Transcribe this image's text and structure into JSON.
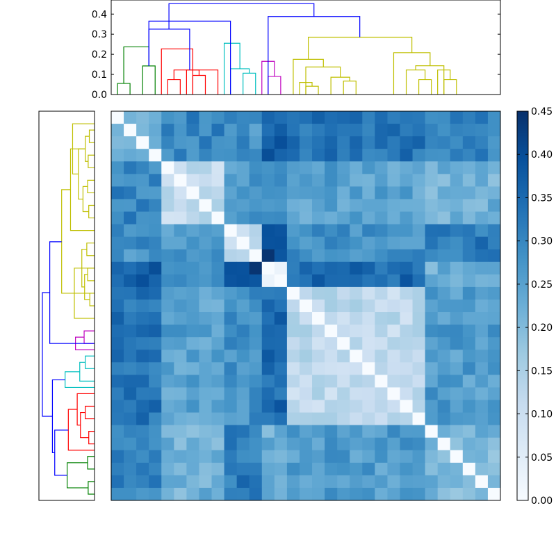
{
  "chart_data": [
    {
      "type": "heatmap",
      "title": "",
      "xlabel": "",
      "ylabel": "",
      "grid": false,
      "colormap": "Blues",
      "size": 31,
      "value_range": [
        0,
        0.45
      ],
      "colorbar": {
        "ticks": [
          0.0,
          0.05,
          0.1,
          0.15,
          0.2,
          0.25,
          0.3,
          0.35,
          0.4,
          0.45
        ],
        "tick_labels": [
          "0.00",
          "0.05",
          "0.10",
          "0.15",
          "0.20",
          "0.25",
          "0.30",
          "0.35",
          "0.40",
          "0.45"
        ]
      },
      "clusters": [
        {
          "color": "#008000",
          "count": 4
        },
        {
          "color": "#ff0000",
          "count": 5
        },
        {
          "color": "#00bfbf",
          "count": 3
        },
        {
          "color": "#bf00bf",
          "count": 2
        },
        {
          "color": "#bfbf00",
          "count": 11
        },
        {
          "color": "#bfbf00",
          "count": 6
        }
      ],
      "block_distances": [
        [
          0.24,
          0.3,
          0.28,
          0.36,
          0.33,
          0.3
        ],
        [
          0.3,
          0.12,
          0.26,
          0.3,
          0.25,
          0.22
        ],
        [
          0.28,
          0.26,
          0.13,
          0.42,
          0.28,
          0.32
        ],
        [
          0.36,
          0.3,
          0.42,
          0.05,
          0.35,
          0.22
        ],
        [
          0.33,
          0.25,
          0.28,
          0.35,
          0.12,
          0.26
        ],
        [
          0.3,
          0.22,
          0.32,
          0.22,
          0.26,
          0.21
        ]
      ]
    },
    {
      "type": "dendrogram",
      "orientation": "top",
      "xlabel": "",
      "ylabel": "",
      "ylim": [
        0,
        0.47
      ],
      "yticks": [
        0.0,
        0.1,
        0.2,
        0.3,
        0.4
      ],
      "ytick_labels": [
        "0.0",
        "0.1",
        "0.2",
        "0.3",
        "0.4"
      ],
      "link_color_default": "#0000ff",
      "links": [
        {
          "left": 0.5,
          "right": 1.5,
          "height": 0.055,
          "color": "#008000"
        },
        {
          "left": 1.0,
          "right": 3.0,
          "height": 0.237,
          "color": "#008000"
        },
        {
          "left": 2.5,
          "right": 3.5,
          "height": 0.142,
          "color": "#008000"
        },
        {
          "left": 4.5,
          "right": 5.5,
          "height": 0.074,
          "color": "#ff0000"
        },
        {
          "left": 6.5,
          "right": 7.5,
          "height": 0.095,
          "color": "#ff0000"
        },
        {
          "left": 5.0,
          "right": 7.0,
          "height": 0.122,
          "color": "#ff0000"
        },
        {
          "left": 8.5,
          "right": 6.0,
          "height": 0.122,
          "color": "#ff0000"
        },
        {
          "left": 4.0,
          "right": 6.5,
          "height": 0.227,
          "color": "#ff0000"
        },
        {
          "left": 10.5,
          "right": 11.5,
          "height": 0.106,
          "color": "#00bfbf"
        },
        {
          "left": 9.5,
          "right": 11.0,
          "height": 0.128,
          "color": "#00bfbf"
        },
        {
          "left": 9.0,
          "right": 10.25,
          "height": 0.255,
          "color": "#00bfbf"
        },
        {
          "left": 12.5,
          "right": 13.5,
          "height": 0.09,
          "color": "#bf00bf"
        },
        {
          "left": 12.0,
          "right": 13.0,
          "height": 0.165,
          "color": "#bf00bf"
        },
        {
          "left": 15.5,
          "right": 16.5,
          "height": 0.041,
          "color": "#bfbf00"
        },
        {
          "left": 15.0,
          "right": 16.0,
          "height": 0.06,
          "color": "#bfbf00"
        },
        {
          "left": 18.5,
          "right": 19.5,
          "height": 0.067,
          "color": "#bfbf00"
        },
        {
          "left": 17.5,
          "right": 19.0,
          "height": 0.086,
          "color": "#bfbf00"
        },
        {
          "left": 15.5,
          "right": 18.25,
          "height": 0.137,
          "color": "#bfbf00"
        },
        {
          "left": 14.5,
          "right": 16.9,
          "height": 0.175,
          "color": "#bfbf00"
        },
        {
          "left": 24.5,
          "right": 25.5,
          "height": 0.074,
          "color": "#bfbf00"
        },
        {
          "left": 23.5,
          "right": 25.0,
          "height": 0.122,
          "color": "#bfbf00"
        },
        {
          "left": 26.5,
          "right": 27.5,
          "height": 0.074,
          "color": "#bfbf00"
        },
        {
          "left": 26.0,
          "right": 27.0,
          "height": 0.122,
          "color": "#bfbf00"
        },
        {
          "left": 24.25,
          "right": 26.5,
          "height": 0.143,
          "color": "#bfbf00"
        },
        {
          "left": 22.5,
          "right": 25.4,
          "height": 0.208,
          "color": "#bfbf00"
        },
        {
          "left": 15.7,
          "right": 23.95,
          "height": 0.285,
          "color": "#bfbf00"
        },
        {
          "left": 3.0,
          "right": 9.5,
          "height": 0.365,
          "color": "#0000ff"
        },
        {
          "left": 3.0,
          "right": 6.25,
          "height": 0.325,
          "color": "#0000ff"
        },
        {
          "left": 12.5,
          "right": 19.8,
          "height": 0.388,
          "color": "#0000ff"
        },
        {
          "left": 4.6,
          "right": 16.15,
          "height": 0.452,
          "color": "#0000ff"
        }
      ]
    },
    {
      "type": "dendrogram",
      "orientation": "left",
      "xlabel": "",
      "ylabel": "",
      "link_color_default": "#0000ff",
      "links": [
        {
          "left": 0.5,
          "right": 1.5,
          "height": 0.055,
          "color": "#008000"
        },
        {
          "left": 2.5,
          "right": 3.5,
          "height": 0.06,
          "color": "#008000"
        },
        {
          "left": 1.0,
          "right": 3.0,
          "height": 0.237,
          "color": "#008000"
        },
        {
          "left": 4.5,
          "right": 5.5,
          "height": 0.05,
          "color": "#ff0000"
        },
        {
          "left": 6.5,
          "right": 7.5,
          "height": 0.08,
          "color": "#ff0000"
        },
        {
          "left": 5.0,
          "right": 7.0,
          "height": 0.122,
          "color": "#ff0000"
        },
        {
          "left": 6.0,
          "right": 8.5,
          "height": 0.15,
          "color": "#ff0000"
        },
        {
          "left": 4.0,
          "right": 7.25,
          "height": 0.227,
          "color": "#ff0000"
        },
        {
          "left": 10.5,
          "right": 11.5,
          "height": 0.08,
          "color": "#00bfbf"
        },
        {
          "left": 9.5,
          "right": 11.0,
          "height": 0.128,
          "color": "#00bfbf"
        },
        {
          "left": 9.0,
          "right": 10.25,
          "height": 0.255,
          "color": "#00bfbf"
        },
        {
          "left": 12.5,
          "right": 13.5,
          "height": 0.09,
          "color": "#bf00bf"
        },
        {
          "left": 12.0,
          "right": 13.0,
          "height": 0.165,
          "color": "#bf00bf"
        },
        {
          "left": 15.5,
          "right": 16.5,
          "height": 0.041,
          "color": "#bfbf00"
        },
        {
          "left": 17.5,
          "right": 18.5,
          "height": 0.06,
          "color": "#bfbf00"
        },
        {
          "left": 16.0,
          "right": 18.0,
          "height": 0.086,
          "color": "#bfbf00"
        },
        {
          "left": 19.5,
          "right": 20.5,
          "height": 0.067,
          "color": "#bfbf00"
        },
        {
          "left": 17.0,
          "right": 20.0,
          "height": 0.11,
          "color": "#bfbf00"
        },
        {
          "left": 14.5,
          "right": 18.5,
          "height": 0.175,
          "color": "#bfbf00"
        },
        {
          "left": 22.5,
          "right": 23.5,
          "height": 0.05,
          "color": "#bfbf00"
        },
        {
          "left": 24.5,
          "right": 25.5,
          "height": 0.06,
          "color": "#bfbf00"
        },
        {
          "left": 23.0,
          "right": 25.0,
          "height": 0.1,
          "color": "#bfbf00"
        },
        {
          "left": 26.5,
          "right": 27.5,
          "height": 0.055,
          "color": "#bfbf00"
        },
        {
          "left": 28.5,
          "right": 29.5,
          "height": 0.045,
          "color": "#bfbf00"
        },
        {
          "left": 27.0,
          "right": 29.0,
          "height": 0.08,
          "color": "#bfbf00"
        },
        {
          "left": 24.0,
          "right": 28.0,
          "height": 0.14,
          "color": "#bfbf00"
        },
        {
          "left": 30.0,
          "right": 26.0,
          "height": 0.19,
          "color": "#bfbf00"
        },
        {
          "left": 21.5,
          "right": 28.0,
          "height": 0.208,
          "color": "#bfbf00"
        },
        {
          "left": 16.5,
          "right": 24.75,
          "height": 0.285,
          "color": "#bfbf00"
        },
        {
          "left": 12.5,
          "right": 20.6,
          "height": 0.388,
          "color": "#0000ff"
        },
        {
          "left": 2.0,
          "right": 5.6,
          "height": 0.345,
          "color": "#0000ff"
        },
        {
          "left": 3.8,
          "right": 9.6,
          "height": 0.365,
          "color": "#0000ff"
        },
        {
          "left": 6.7,
          "right": 16.55,
          "height": 0.452,
          "color": "#0000ff"
        }
      ]
    }
  ]
}
